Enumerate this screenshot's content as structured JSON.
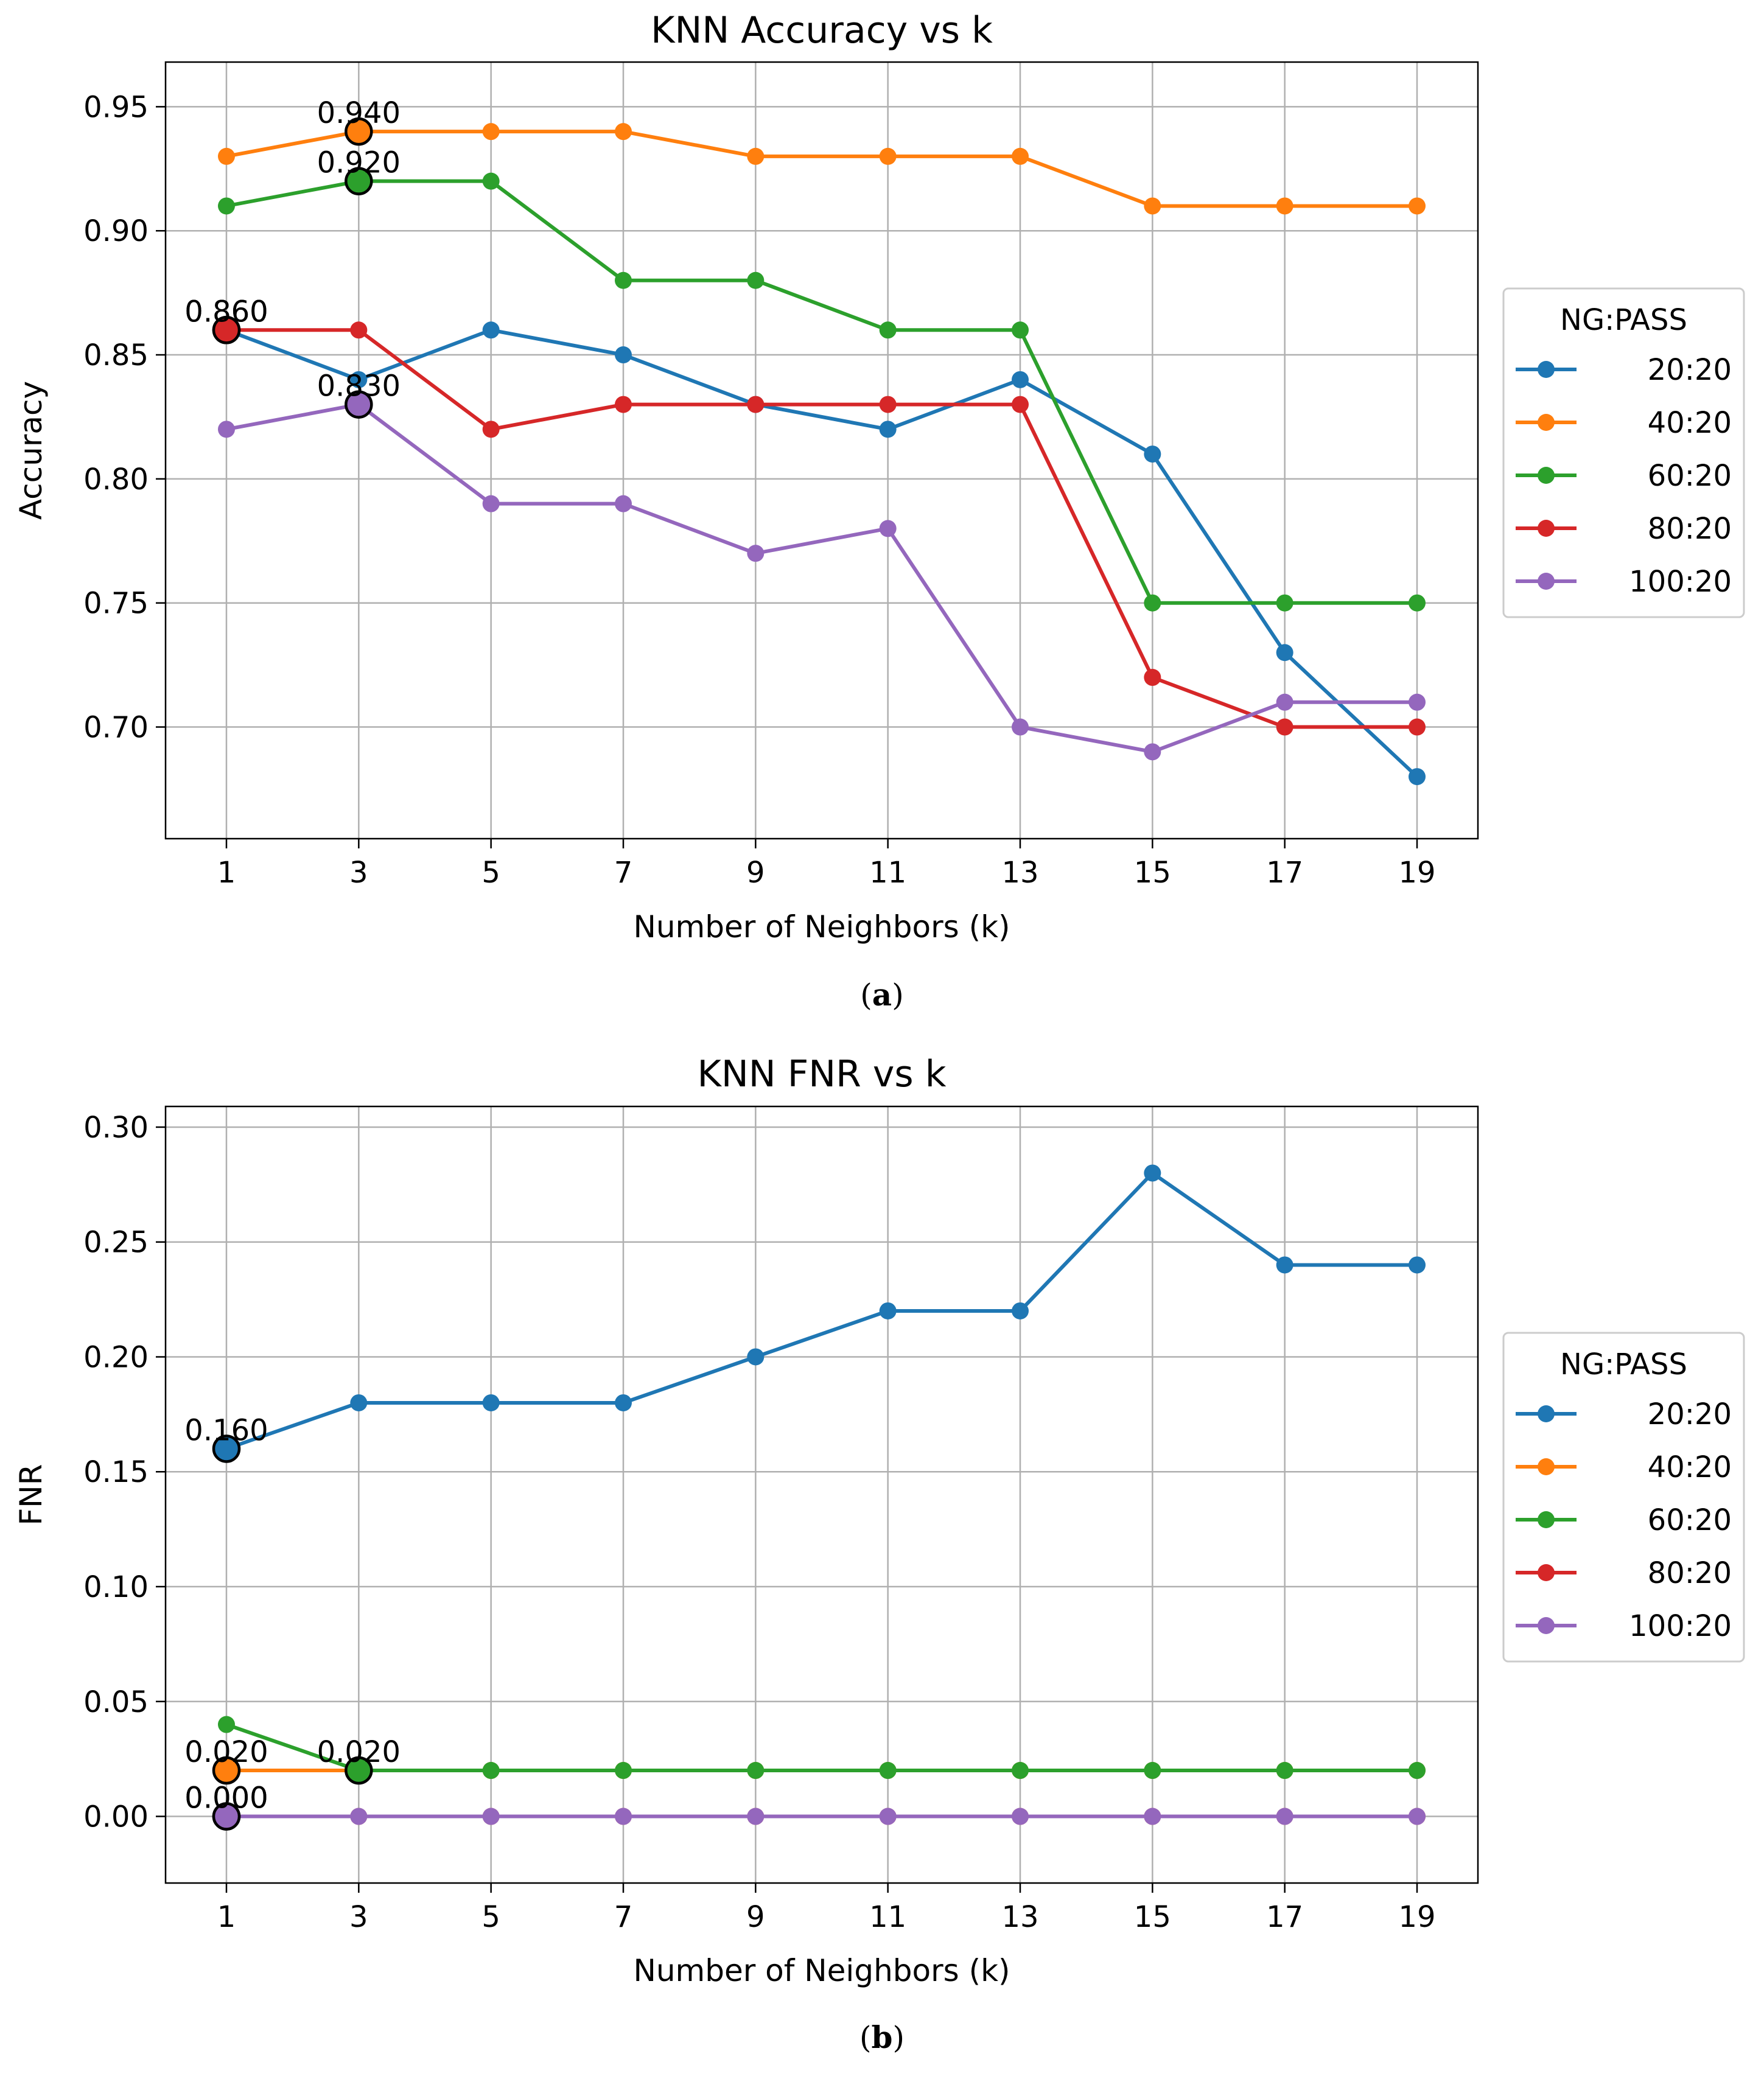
{
  "legend_title": "NG:PASS",
  "colors": {
    "20:20": "#1f77b4",
    "40:20": "#ff7f0e",
    "60:20": "#2ca02c",
    "80:20": "#d62728",
    "100:20": "#9467bd"
  },
  "captions": {
    "a": "a",
    "b": "b"
  },
  "chart_data": [
    {
      "type": "line",
      "title": "KNN Accuracy vs k",
      "xlabel": "Number of Neighbors (k)",
      "ylabel": "Accuracy",
      "x": [
        1,
        3,
        5,
        7,
        9,
        11,
        13,
        15,
        17,
        19
      ],
      "yticks": [
        "0.70",
        "0.75",
        "0.80",
        "0.85",
        "0.90",
        "0.95"
      ],
      "ylim": [
        0.655,
        0.968
      ],
      "grid": true,
      "legend_placement": "right, outside",
      "series": [
        {
          "name": "20:20",
          "values": [
            0.86,
            0.84,
            0.86,
            0.85,
            0.83,
            0.82,
            0.84,
            0.81,
            0.73,
            0.68
          ]
        },
        {
          "name": "40:20",
          "values": [
            0.93,
            0.94,
            0.94,
            0.94,
            0.93,
            0.93,
            0.93,
            0.91,
            0.91,
            0.91
          ]
        },
        {
          "name": "60:20",
          "values": [
            0.91,
            0.92,
            0.92,
            0.88,
            0.88,
            0.86,
            0.86,
            0.75,
            0.75,
            0.75
          ]
        },
        {
          "name": "80:20",
          "values": [
            0.86,
            0.86,
            0.82,
            0.83,
            0.83,
            0.83,
            0.83,
            0.72,
            0.7,
            0.7
          ]
        },
        {
          "name": "100:20",
          "values": [
            0.82,
            0.83,
            0.79,
            0.79,
            0.77,
            0.78,
            0.7,
            0.69,
            0.71,
            0.71
          ]
        }
      ],
      "highlights": [
        {
          "series": "20:20",
          "k": 1,
          "label": "0.860"
        },
        {
          "series": "40:20",
          "k": 3,
          "label": "0.940"
        },
        {
          "series": "60:20",
          "k": 3,
          "label": "0.920"
        },
        {
          "series": "80:20",
          "k": 1,
          "label": "0.860"
        },
        {
          "series": "100:20",
          "k": 3,
          "label": "0.830"
        }
      ]
    },
    {
      "type": "line",
      "title": "KNN FNR vs k",
      "xlabel": "Number of Neighbors (k)",
      "ylabel": "FNR",
      "x": [
        1,
        3,
        5,
        7,
        9,
        11,
        13,
        15,
        17,
        19
      ],
      "yticks": [
        "0.00",
        "0.05",
        "0.10",
        "0.15",
        "0.20",
        "0.25",
        "0.30"
      ],
      "ylim": [
        -0.029,
        0.309
      ],
      "grid": true,
      "legend_placement": "right, outside",
      "series": [
        {
          "name": "20:20",
          "values": [
            0.16,
            0.18,
            0.18,
            0.18,
            0.2,
            0.22,
            0.22,
            0.28,
            0.24,
            0.24
          ]
        },
        {
          "name": "40:20",
          "values": [
            0.02,
            0.02,
            0.02,
            0.02,
            0.02,
            0.02,
            0.02,
            0.02,
            0.02,
            0.02
          ]
        },
        {
          "name": "60:20",
          "values": [
            0.04,
            0.02,
            0.02,
            0.02,
            0.02,
            0.02,
            0.02,
            0.02,
            0.02,
            0.02
          ]
        },
        {
          "name": "80:20",
          "values": [
            0.0,
            0.0,
            0.0,
            0.0,
            0.0,
            0.0,
            0.0,
            0.0,
            0.0,
            0.0
          ]
        },
        {
          "name": "100:20",
          "values": [
            0.0,
            0.0,
            0.0,
            0.0,
            0.0,
            0.0,
            0.0,
            0.0,
            0.0,
            0.0
          ]
        }
      ],
      "highlights": [
        {
          "series": "20:20",
          "k": 1,
          "label": "0.160"
        },
        {
          "series": "40:20",
          "k": 1,
          "label": "0.020"
        },
        {
          "series": "60:20",
          "k": 3,
          "label": "0.020"
        },
        {
          "series": "80:20",
          "k": 1,
          "label": "0.000"
        },
        {
          "series": "100:20",
          "k": 1,
          "label": "0.000"
        }
      ]
    }
  ]
}
